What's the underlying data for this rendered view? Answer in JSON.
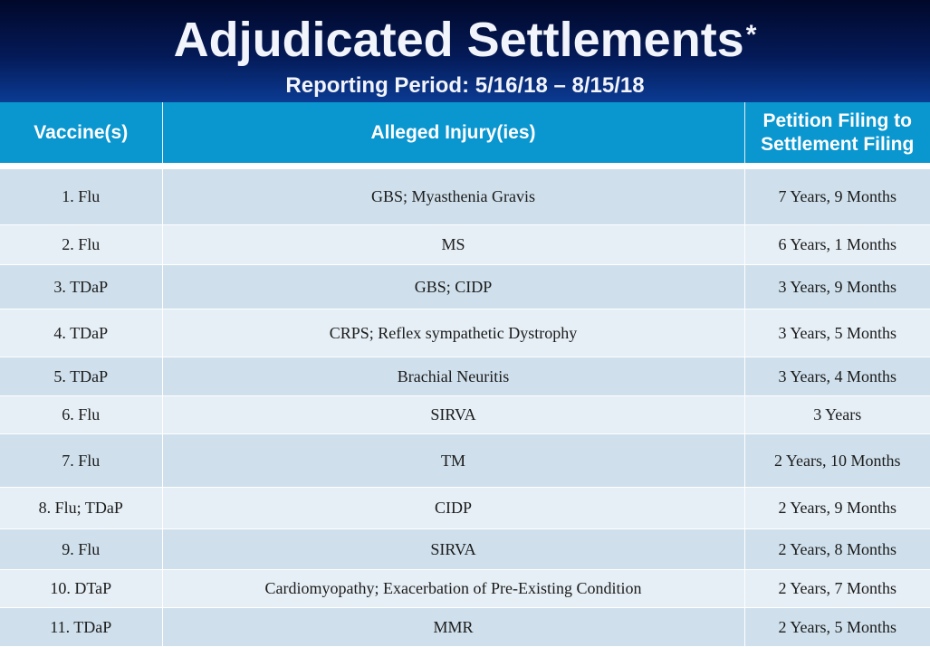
{
  "header": {
    "title": "Adjudicated Settlements",
    "title_mark": "*",
    "subtitle": "Reporting Period: 5/16/18 – 8/15/18"
  },
  "table": {
    "columns": [
      "Vaccine(s)",
      "Alleged Injury(ies)",
      "Petition Filing to Settlement Filing"
    ],
    "rows": [
      {
        "vaccine": "1. Flu",
        "injury": "GBS; Myasthenia Gravis",
        "duration": "7 Years, 9 Months"
      },
      {
        "vaccine": "2. Flu",
        "injury": "MS",
        "duration": "6 Years, 1 Months"
      },
      {
        "vaccine": "3. TDaP",
        "injury": "GBS; CIDP",
        "duration": "3 Years, 9 Months"
      },
      {
        "vaccine": "4. TDaP",
        "injury": "CRPS; Reflex sympathetic Dystrophy",
        "duration": "3 Years, 5 Months"
      },
      {
        "vaccine": "5. TDaP",
        "injury": "Brachial Neuritis",
        "duration": "3 Years, 4 Months"
      },
      {
        "vaccine": "6. Flu",
        "injury": "SIRVA",
        "duration": "3 Years"
      },
      {
        "vaccine": "7. Flu",
        "injury": "TM",
        "duration": "2 Years, 10 Months"
      },
      {
        "vaccine": "8. Flu; TDaP",
        "injury": "CIDP",
        "duration": "2 Years, 9 Months"
      },
      {
        "vaccine": "9. Flu",
        "injury": "SIRVA",
        "duration": "2 Years, 8 Months"
      },
      {
        "vaccine": "10. DTaP",
        "injury": "Cardiomyopathy; Exacerbation of Pre-Existing Condition",
        "duration": "2 Years, 7 Months"
      },
      {
        "vaccine": "11. TDaP",
        "injury": "MMR",
        "duration": "2 Years, 5 Months"
      }
    ]
  },
  "colors": {
    "banner_dark": "#01082a",
    "banner_light": "#0b3b93",
    "header_blue": "#0a96cf",
    "row_dark": "#cfe0ec",
    "row_light": "#e6eff6"
  }
}
